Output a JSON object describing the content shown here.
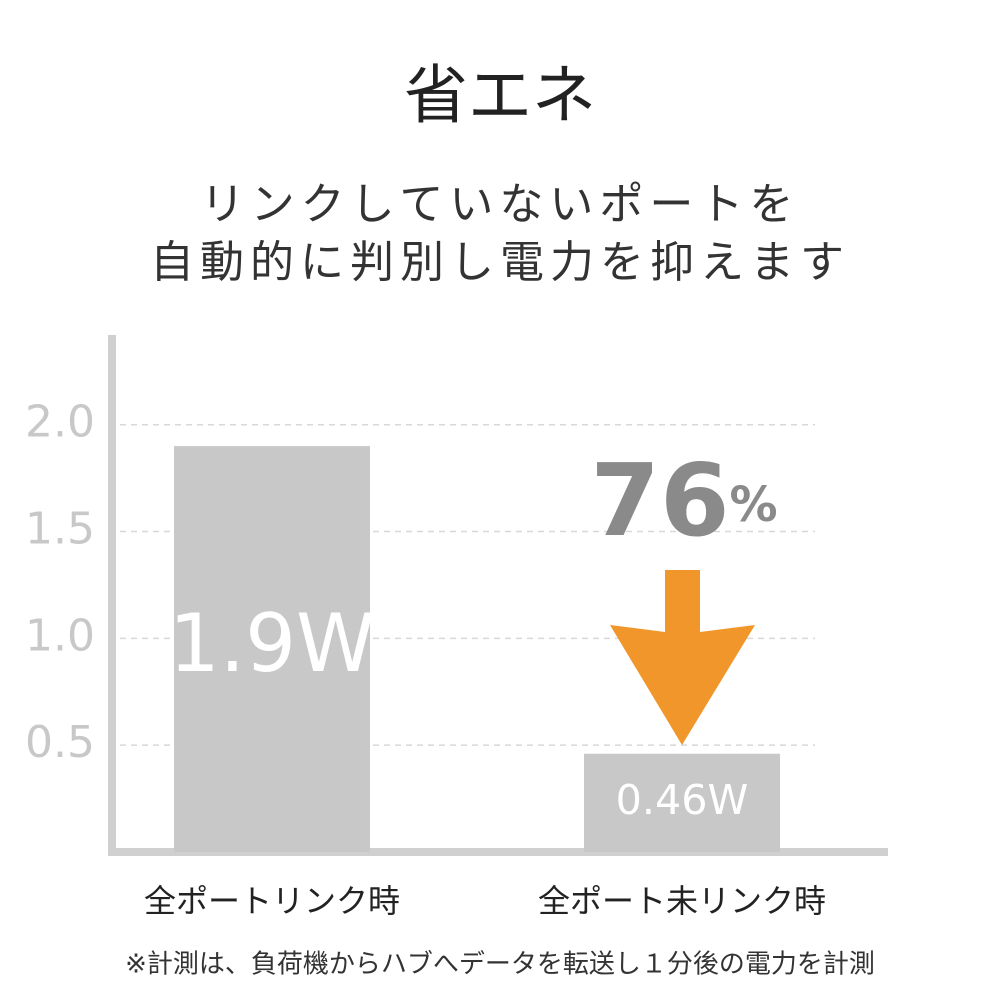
{
  "chart_data": {
    "type": "bar",
    "title": "省エネ",
    "subtitle": [
      "リンクしていないポートを",
      "自動的に判別し電力を抑えます"
    ],
    "categories": [
      "全ポートリンク時",
      "全ポート未リンク時"
    ],
    "values": [
      1.9,
      0.46
    ],
    "value_labels": [
      "1.9W",
      "0.46W"
    ],
    "color": "#c8c8c8",
    "ylim": [
      0,
      2.42
    ],
    "yticks": [
      0.5,
      {
        "value": 1,
        "label": "1.0"
      },
      1.5,
      {
        "value": 2,
        "label": "2.0"
      }
    ],
    "grid": true,
    "annotation": {
      "number": "76",
      "unit": "%",
      "color": "#8a8a8a",
      "arrow_color": "#f0962a"
    },
    "footnote": "※計測は、負荷機からハブへデータを転送し１分後の電力を計測"
  }
}
